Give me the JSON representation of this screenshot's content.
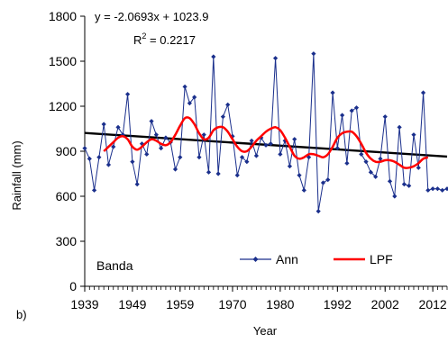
{
  "chart_data": {
    "type": "line",
    "panel_label": "b)",
    "station": "Banda",
    "xlabel": "Year",
    "ylabel": "Rainfall (mm)",
    "xlim": [
      1939,
      2015
    ],
    "ylim": [
      0,
      1800
    ],
    "x_ticks": [
      "1939",
      "1949",
      "1959",
      "1970",
      "1980",
      "1992",
      "2002",
      "2012"
    ],
    "y_ticks": [
      "0",
      "300",
      "600",
      "900",
      "1200",
      "1500",
      "1800"
    ],
    "equation": "y = -2.0693x + 1023.9",
    "r2_prefix": "R",
    "r2_sup": "2",
    "r2_suffix": " = 0.2217",
    "trend": {
      "slope": -2.0693,
      "intercept": 1023.9,
      "color": "#000000"
    },
    "series": [
      {
        "name": "Ann",
        "color": "#1a2f8c",
        "marker": "diamond",
        "x": [
          1939,
          1940,
          1941,
          1942,
          1943,
          1944,
          1945,
          1946,
          1947,
          1948,
          1949,
          1950,
          1951,
          1952,
          1953,
          1954,
          1955,
          1956,
          1957,
          1958,
          1959,
          1960,
          1961,
          1962,
          1963,
          1964,
          1965,
          1966,
          1967,
          1968,
          1969,
          1970,
          1971,
          1972,
          1973,
          1974,
          1975,
          1976,
          1977,
          1978,
          1979,
          1980,
          1981,
          1982,
          1983,
          1984,
          1985,
          1986,
          1987,
          1988,
          1989,
          1990,
          1991,
          1992,
          1993,
          1994,
          1995,
          1996,
          1997,
          1998,
          1999,
          2000,
          2001,
          2002,
          2003,
          2004,
          2005,
          2006,
          2007,
          2008,
          2009,
          2010,
          2011,
          2012,
          2013,
          2014,
          2015
        ],
        "values": [
          920,
          850,
          640,
          860,
          1080,
          810,
          930,
          1060,
          1010,
          1280,
          830,
          680,
          950,
          880,
          1100,
          1010,
          920,
          990,
          960,
          780,
          860,
          1330,
          1220,
          1260,
          860,
          1010,
          760,
          1530,
          750,
          1130,
          1210,
          1000,
          740,
          860,
          830,
          970,
          870,
          990,
          940,
          950,
          1520,
          880,
          970,
          800,
          980,
          740,
          640,
          860,
          1550,
          500,
          690,
          710,
          1290,
          920,
          1140,
          820,
          1170,
          1190,
          880,
          830,
          760,
          730,
          850,
          1130,
          700,
          600,
          1060,
          680,
          670,
          1010,
          790,
          1290,
          640,
          650,
          650,
          640,
          650
        ]
      },
      {
        "name": "LPF",
        "color": "#ff0000",
        "x": [
          1943,
          1944,
          1945,
          1946,
          1947,
          1948,
          1949,
          1950,
          1951,
          1952,
          1953,
          1954,
          1955,
          1956,
          1957,
          1958,
          1959,
          1960,
          1961,
          1962,
          1963,
          1964,
          1965,
          1966,
          1967,
          1968,
          1969,
          1970,
          1971,
          1972,
          1973,
          1974,
          1975,
          1976,
          1977,
          1978,
          1979,
          1980,
          1981,
          1982,
          1983,
          1984,
          1985,
          1986,
          1987,
          1988,
          1989,
          1990,
          1991,
          1992,
          1993,
          1994,
          1995,
          1996,
          1997,
          1998,
          1999,
          2000,
          2001,
          2002,
          2003,
          2004,
          2005,
          2006,
          2007,
          2008,
          2009,
          2010,
          2011
        ],
        "values": [
          900,
          930,
          960,
          990,
          1000,
          980,
          930,
          910,
          930,
          960,
          980,
          970,
          950,
          940,
          960,
          1010,
          1070,
          1120,
          1120,
          1080,
          1020,
          980,
          990,
          1040,
          1060,
          1060,
          1030,
          980,
          930,
          900,
          900,
          930,
          970,
          1000,
          1030,
          1050,
          1060,
          1040,
          990,
          930,
          870,
          850,
          860,
          880,
          880,
          870,
          860,
          880,
          930,
          990,
          1020,
          1030,
          1030,
          1000,
          950,
          890,
          850,
          830,
          830,
          840,
          840,
          830,
          810,
          790,
          790,
          800,
          820,
          850,
          860
        ]
      }
    ],
    "legend": {
      "placement": "bottom-right"
    }
  }
}
